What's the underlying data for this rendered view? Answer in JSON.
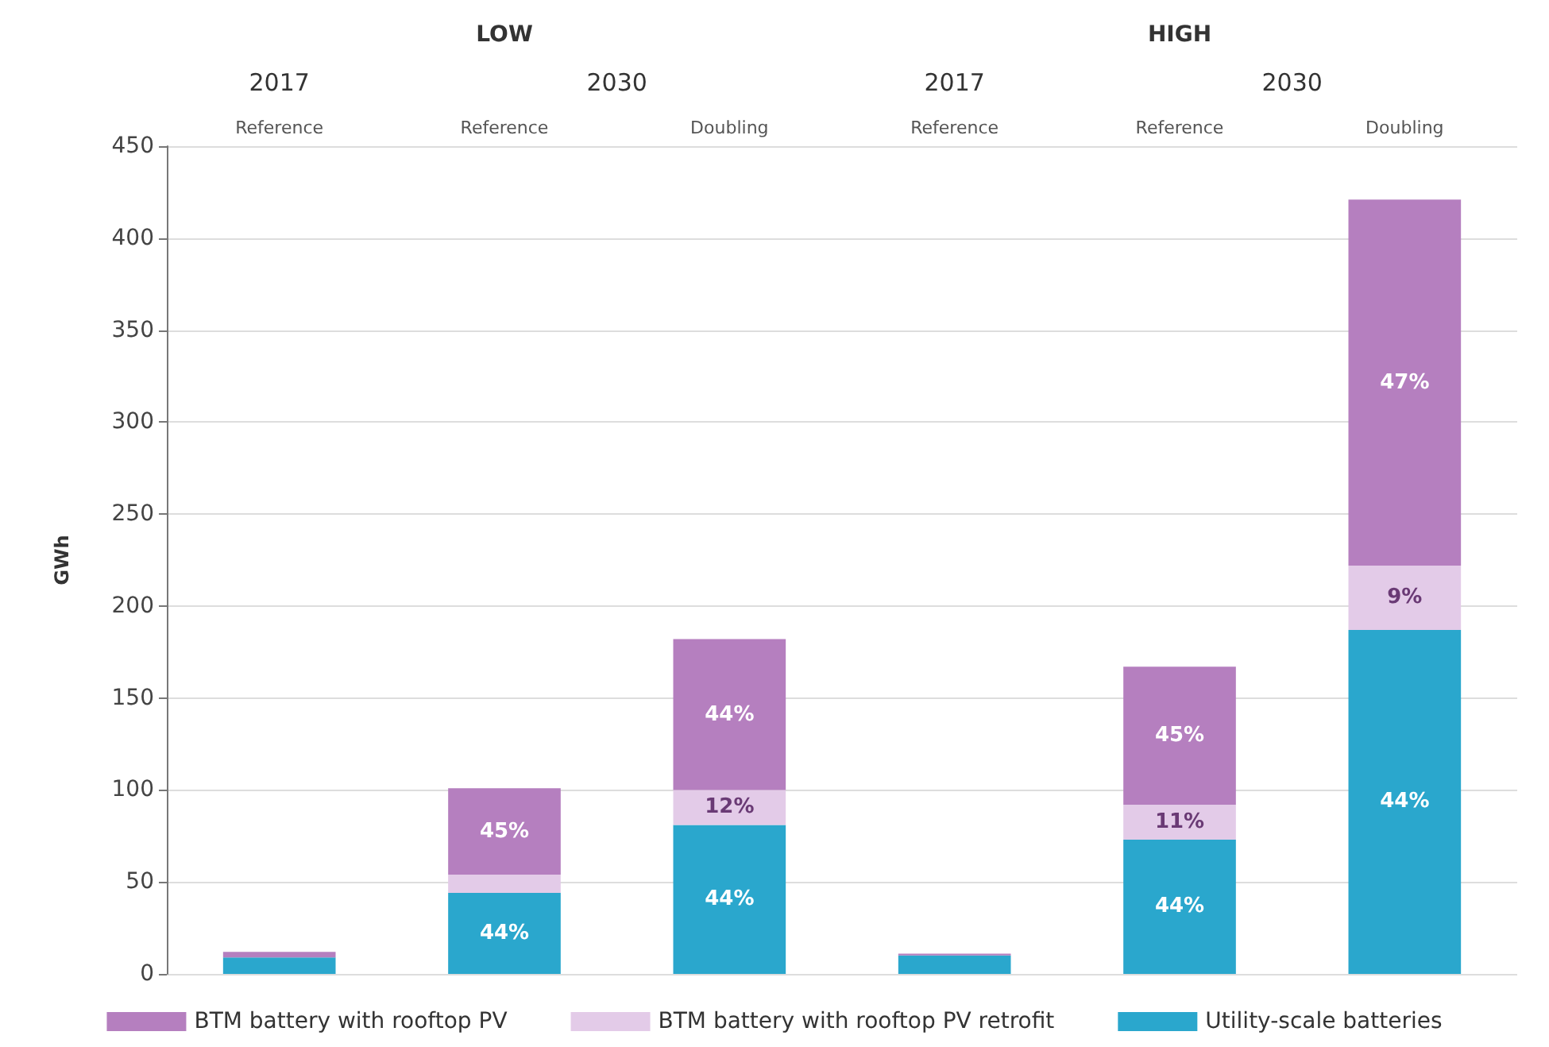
{
  "chart_data": {
    "type": "bar",
    "stacked": true,
    "ylabel": "GWh",
    "categories": [
      "Reference",
      "Reference",
      "Doubling",
      "Reference",
      "Reference",
      "Doubling"
    ],
    "annotations": [
      "LOW",
      "HIGH",
      "2017",
      "2030",
      "2017",
      "2030",
      "44%",
      "45%",
      "44%",
      "12%",
      "44%",
      "44%",
      "11%",
      "45%",
      "44%",
      "9%",
      "47%"
    ],
    "series": [
      {
        "name": "Utility-scale batteries",
        "color": "#2aa7cd",
        "values": [
          9,
          44,
          81,
          10,
          73,
          187
        ]
      },
      {
        "name": "BTM battery with rooftop PV retrofit",
        "color": "#e3cbe8",
        "values": [
          0,
          10,
          19,
          0,
          19,
          35
        ]
      },
      {
        "name": "BTM battery with rooftop PV",
        "color": "#b57fbf",
        "values": [
          3,
          47,
          82,
          1,
          75,
          199
        ]
      }
    ],
    "ylim": [
      0,
      450
    ],
    "yticks": [
      0,
      50,
      100,
      150,
      200,
      250,
      300,
      350,
      400,
      450
    ],
    "grid": "y",
    "legend": "bottom"
  }
}
